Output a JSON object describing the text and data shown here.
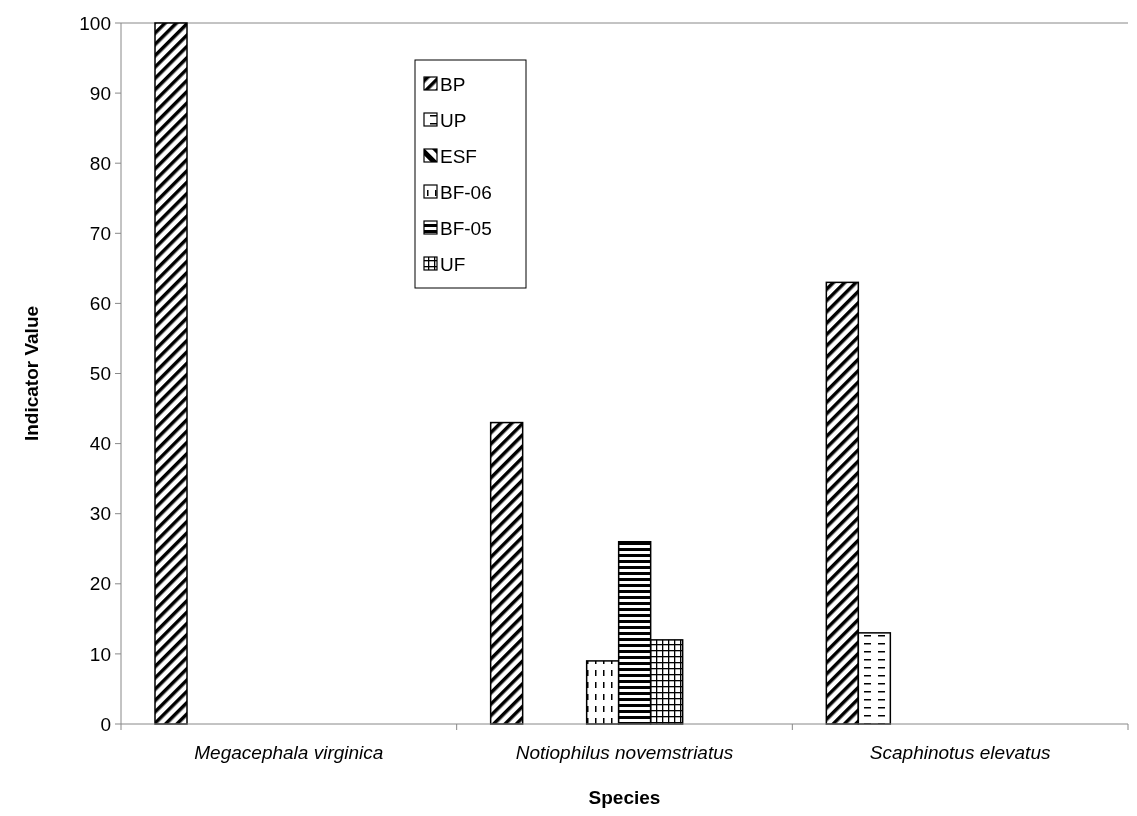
{
  "chart_data": {
    "type": "bar",
    "xlabel": "Species",
    "ylabel": "Indicator Value",
    "categories": [
      "Megacephala virginica",
      "Notiophilus novemstriatus",
      "Scaphinotus elevatus"
    ],
    "series": [
      {
        "name": "BP",
        "color": "#000000",
        "values": [
          100,
          43,
          63
        ]
      },
      {
        "name": "UP",
        "color": "#000000",
        "values": [
          0,
          0,
          13
        ]
      },
      {
        "name": "ESF",
        "color": "#000000",
        "values": [
          0,
          0,
          0
        ]
      },
      {
        "name": "BF-06",
        "color": "#000000",
        "values": [
          0,
          9,
          0
        ]
      },
      {
        "name": "BF-05",
        "color": "#000000",
        "values": [
          0,
          26,
          0
        ]
      },
      {
        "name": "UF",
        "color": "#000000",
        "values": [
          0,
          12,
          0
        ]
      }
    ],
    "ylim": [
      0,
      100
    ],
    "yticks": [
      0,
      10,
      20,
      30,
      40,
      50,
      60,
      70,
      80,
      90,
      100
    ],
    "grid": false,
    "legend": "top left"
  }
}
